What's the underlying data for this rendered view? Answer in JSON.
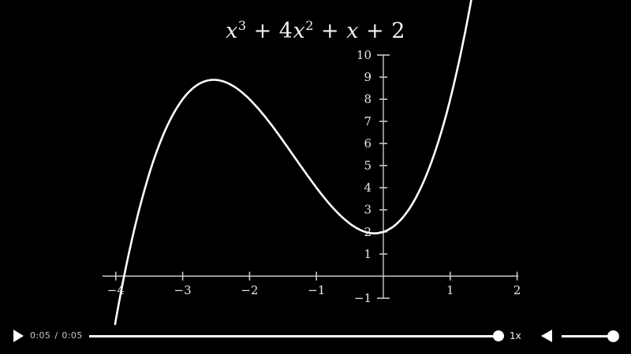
{
  "player": {
    "current_time": "0:05",
    "time_separator": "/",
    "duration": "0:05",
    "progress_percent": 100,
    "speed_label": "1x",
    "volume_percent": 100,
    "colors": {
      "controls": "#ffffff",
      "time_text": "#c9c9c9",
      "background": "#000000"
    }
  },
  "chart_data": {
    "type": "line",
    "title": "x^3 + 4x^2 + x + 2",
    "title_parts": [
      {
        "t": "x",
        "italic": true
      },
      {
        "t": "3",
        "sup": true
      },
      {
        "t": " + 4",
        "italic": false
      },
      {
        "t": "x",
        "italic": true
      },
      {
        "t": "2",
        "sup": true
      },
      {
        "t": " + ",
        "italic": false
      },
      {
        "t": "x",
        "italic": true
      },
      {
        "t": " + 2",
        "italic": false
      }
    ],
    "function": {
      "expression": "f(x) = x^3 + 4x^2 + x + 2",
      "coefficients": [
        1,
        4,
        1,
        2
      ]
    },
    "x_domain_plotted": [
      -4.01,
      1.35
    ],
    "x_axis": {
      "ticks": [
        -4,
        -3,
        -2,
        -1,
        1,
        2
      ],
      "line_range": [
        -4.2,
        2.02
      ]
    },
    "y_axis": {
      "ticks": [
        -1,
        1,
        2,
        3,
        4,
        5,
        6,
        7,
        8,
        9,
        10
      ],
      "line_range": [
        -1,
        10
      ]
    },
    "key_points": {
      "y_intercept": [
        0,
        2
      ],
      "local_max": [
        -2.54,
        8.88
      ],
      "local_min": [
        -0.13,
        1.93
      ],
      "x_intercept": [
        -3.87,
        0
      ]
    },
    "grid": false,
    "legend": false,
    "colors": {
      "curve": "#ffffff",
      "axes": "#c9c9c9",
      "tick_labels": "#e8e8e8"
    }
  }
}
